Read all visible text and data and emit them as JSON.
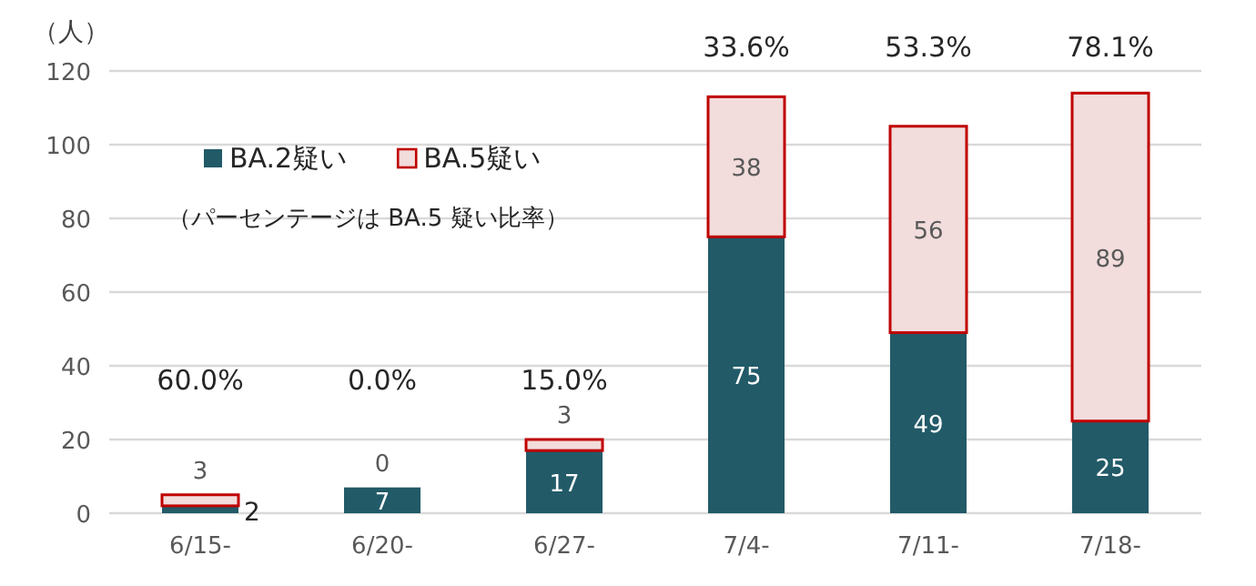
{
  "chart_data": {
    "type": "bar",
    "stacked": true,
    "ylabel": "（人）",
    "categories": [
      "6/15-",
      "6/20-",
      "6/27-",
      "7/4-",
      "7/11-",
      "7/18-"
    ],
    "series": [
      {
        "name": "BA.2疑い",
        "color": "#225a68",
        "values": [
          2,
          7,
          17,
          75,
          49,
          25
        ]
      },
      {
        "name": "BA.5疑い",
        "color": "#f2dcdc",
        "values": [
          3,
          0,
          3,
          38,
          56,
          89
        ]
      }
    ],
    "annotations": [
      "60.0%",
      "0.0%",
      "15.0%",
      "33.6%",
      "53.3%",
      "78.1%",
      "（パーセンテージは BA.5 疑い比率）"
    ],
    "ylim": [
      0,
      120
    ],
    "yticks": [
      0,
      20,
      40,
      60,
      80,
      100,
      120
    ],
    "grid": "y",
    "legend": "top left",
    "data_labels": true
  }
}
